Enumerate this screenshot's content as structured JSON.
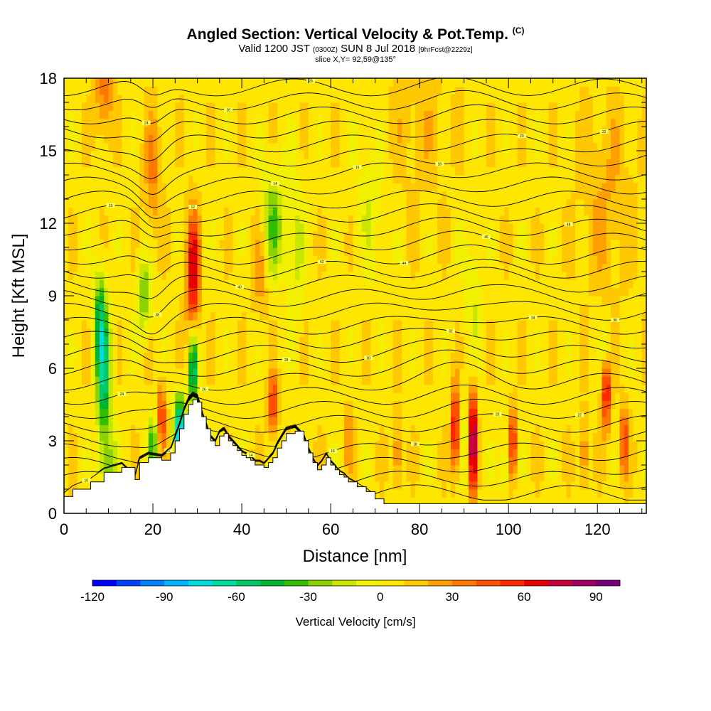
{
  "header": {
    "title": "Angled Section: Vertical Velocity & Pot.Temp.",
    "title_unit": "(C)",
    "valid_prefix": "Valid 1200 JST",
    "valid_utc": "(0300Z)",
    "valid_date": "SUN 8 Jul 2018",
    "forecast": "[9hrFcst@2229z]",
    "slice": "slice X,Y= 92,59@135°"
  },
  "chart_data": {
    "type": "heatmap",
    "xlabel": "Distance [nm]",
    "ylabel": "Height [Kft MSL]",
    "xlim": [
      0,
      131
    ],
    "ylim": [
      0,
      18
    ],
    "x_ticks": [
      0,
      20,
      40,
      60,
      80,
      100,
      120
    ],
    "y_ticks": [
      0,
      3,
      6,
      9,
      12,
      15,
      18
    ],
    "colorbar": {
      "label": "Vertical Velocity [cm/s]",
      "range": [
        -120,
        100
      ],
      "tick_values": [
        -120,
        -90,
        -60,
        -30,
        0,
        30,
        60,
        90
      ],
      "tick_labels": [
        "-120",
        "-90",
        "-60",
        "-30",
        "0",
        "30",
        "60",
        "90"
      ],
      "colors": [
        "#0000ff",
        "#0040ff",
        "#0080ff",
        "#00b4ff",
        "#00dcdc",
        "#00dca0",
        "#00c864",
        "#00b432",
        "#32be00",
        "#8cd200",
        "#c8e600",
        "#f0f000",
        "#ffe600",
        "#ffc800",
        "#ffa000",
        "#ff7800",
        "#ff5000",
        "#ff2800",
        "#e60000",
        "#c8003c",
        "#a00064",
        "#780078"
      ]
    },
    "terrain": [
      [
        0,
        0.7
      ],
      [
        2,
        1.0
      ],
      [
        6,
        1.3
      ],
      [
        9,
        1.7
      ],
      [
        13,
        1.9
      ],
      [
        16,
        1.4
      ],
      [
        17,
        2.1
      ],
      [
        19,
        2.3
      ],
      [
        22,
        2.2
      ],
      [
        24,
        2.5
      ],
      [
        25,
        3.0
      ],
      [
        26,
        3.5
      ],
      [
        27,
        4.1
      ],
      [
        28,
        4.5
      ],
      [
        29,
        4.7
      ],
      [
        30,
        4.6
      ],
      [
        31,
        4.0
      ],
      [
        32,
        3.5
      ],
      [
        33,
        3.0
      ],
      [
        34,
        2.8
      ],
      [
        35,
        3.2
      ],
      [
        36,
        3.3
      ],
      [
        37,
        3.0
      ],
      [
        38,
        2.8
      ],
      [
        39,
        2.6
      ],
      [
        40,
        2.4
      ],
      [
        41,
        2.3
      ],
      [
        42,
        2.2
      ],
      [
        43,
        2.0
      ],
      [
        44,
        2.0
      ],
      [
        45,
        1.9
      ],
      [
        46,
        2.1
      ],
      [
        47,
        2.3
      ],
      [
        48,
        2.7
      ],
      [
        49,
        3.0
      ],
      [
        50,
        3.3
      ],
      [
        52,
        3.4
      ],
      [
        54,
        3.0
      ],
      [
        55,
        2.5
      ],
      [
        56,
        2.1
      ],
      [
        57,
        1.8
      ],
      [
        58,
        2.0
      ],
      [
        59,
        2.3
      ],
      [
        60,
        2.0
      ],
      [
        61,
        1.8
      ],
      [
        62,
        1.6
      ],
      [
        63,
        1.5
      ],
      [
        64,
        1.3
      ],
      [
        66,
        1.1
      ],
      [
        68,
        0.9
      ],
      [
        70,
        0.6
      ],
      [
        72,
        0.4
      ],
      [
        131,
        0.4
      ]
    ],
    "contour_labels": [
      "10",
      "12",
      "14",
      "16",
      "18",
      "20",
      "22",
      "24",
      "26",
      "28",
      "30",
      "32",
      "34",
      "36",
      "38",
      "40",
      "42",
      "44",
      "46",
      "48"
    ],
    "velocity_features": [
      {
        "x": 9,
        "y": 5.5,
        "v": -60,
        "sx": 1.6,
        "sy": 2.8
      },
      {
        "x": 8,
        "y": 8,
        "v": -45,
        "sx": 1.4,
        "sy": 2.0
      },
      {
        "x": 10,
        "y": 2,
        "v": -25,
        "sx": 2.0,
        "sy": 1.2
      },
      {
        "x": 18,
        "y": 9,
        "v": -35,
        "sx": 1.6,
        "sy": 1.5
      },
      {
        "x": 20,
        "y": 2.8,
        "v": -40,
        "sx": 1.2,
        "sy": 1.2
      },
      {
        "x": 26,
        "y": 3.5,
        "v": -90,
        "sx": 1.2,
        "sy": 1.4
      },
      {
        "x": 29,
        "y": 6,
        "v": -70,
        "sx": 1.0,
        "sy": 1.5
      },
      {
        "x": 29,
        "y": 10,
        "v": 65,
        "sx": 1.5,
        "sy": 2.5
      },
      {
        "x": 22,
        "y": 4,
        "v": 50,
        "sx": 1.0,
        "sy": 1.3
      },
      {
        "x": 9,
        "y": 17.5,
        "v": 30,
        "sx": 2.0,
        "sy": 2.0
      },
      {
        "x": 20,
        "y": 14,
        "v": 25,
        "sx": 2.0,
        "sy": 2.5
      },
      {
        "x": 47,
        "y": 12,
        "v": -35,
        "sx": 2.5,
        "sy": 2.2
      },
      {
        "x": 52,
        "y": 11,
        "v": -20,
        "sx": 2.0,
        "sy": 3.0
      },
      {
        "x": 69,
        "y": 13,
        "v": -15,
        "sx": 3.0,
        "sy": 3.0
      },
      {
        "x": 47,
        "y": 4.5,
        "v": 50,
        "sx": 1.2,
        "sy": 1.2
      },
      {
        "x": 44,
        "y": 10,
        "v": 20,
        "sx": 2.0,
        "sy": 2.0
      },
      {
        "x": 88,
        "y": 3.5,
        "v": 80,
        "sx": 0.7,
        "sy": 1.8
      },
      {
        "x": 92,
        "y": 3,
        "v": 95,
        "sx": 0.8,
        "sy": 2.2
      },
      {
        "x": 90,
        "y": 3.5,
        "v": -20,
        "sx": 0.5,
        "sy": 2.0
      },
      {
        "x": 99,
        "y": 2,
        "v": -25,
        "sx": 0.8,
        "sy": 1.2
      },
      {
        "x": 101,
        "y": 3,
        "v": 55,
        "sx": 0.8,
        "sy": 1.5
      },
      {
        "x": 75,
        "y": 2.5,
        "v": 35,
        "sx": 0.8,
        "sy": 1.5
      },
      {
        "x": 117,
        "y": 2.5,
        "v": 35,
        "sx": 0.8,
        "sy": 1.5
      },
      {
        "x": 122,
        "y": 5,
        "v": 60,
        "sx": 1.0,
        "sy": 1.5
      },
      {
        "x": 126,
        "y": 3,
        "v": 45,
        "sx": 1.0,
        "sy": 1.5
      },
      {
        "x": 122,
        "y": 7,
        "v": -20,
        "sx": 1.0,
        "sy": 1.0
      },
      {
        "x": 92,
        "y": 9,
        "v": -15,
        "sx": 2.0,
        "sy": 3.0
      },
      {
        "x": 122,
        "y": 13,
        "v": 15,
        "sx": 6.0,
        "sy": 4.0
      },
      {
        "x": 64,
        "y": 3,
        "v": 20,
        "sx": 1.2,
        "sy": 1.5
      },
      {
        "x": 80,
        "y": 16,
        "v": 10,
        "sx": 8,
        "sy": 3
      }
    ]
  }
}
